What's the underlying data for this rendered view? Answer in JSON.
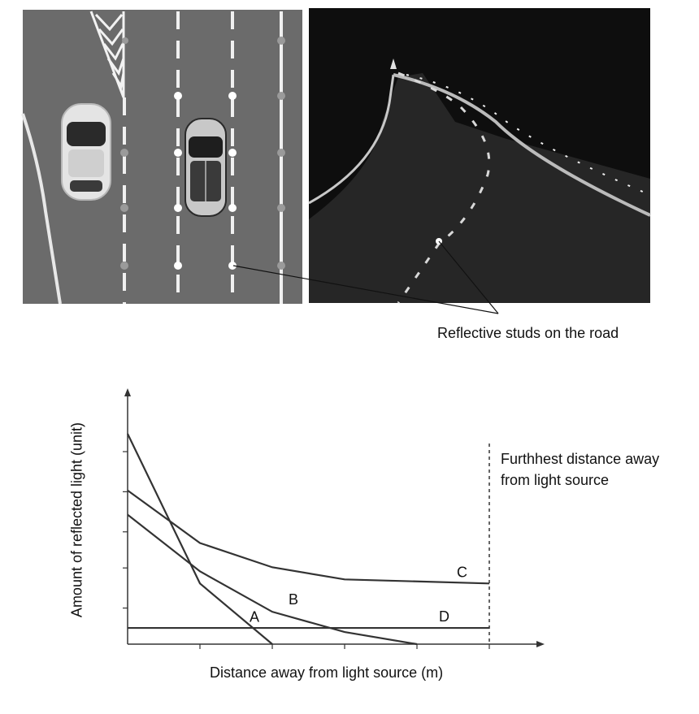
{
  "caption": "Reflective studs on the road",
  "chart_data": {
    "type": "line",
    "xlabel": "Distance away from light source (m)",
    "ylabel": "Amount of reflected light (unit)",
    "xlim": [
      0,
      5
    ],
    "ylim": [
      0,
      6.2
    ],
    "grid": false,
    "series": [
      {
        "name": "A",
        "points": [
          [
            0,
            5.2
          ],
          [
            1,
            1.5
          ],
          [
            2,
            0
          ]
        ]
      },
      {
        "name": "B",
        "points": [
          [
            0,
            3.2
          ],
          [
            1,
            1.8
          ],
          [
            2,
            0.8
          ],
          [
            3,
            0.3
          ],
          [
            4,
            0
          ]
        ]
      },
      {
        "name": "C",
        "points": [
          [
            0,
            3.8
          ],
          [
            1,
            2.5
          ],
          [
            2,
            1.9
          ],
          [
            3,
            1.6
          ],
          [
            5,
            1.5
          ]
        ]
      },
      {
        "name": "D",
        "points": [
          [
            0,
            0.4
          ],
          [
            5,
            0.4
          ]
        ]
      }
    ],
    "annotation": "Furthhest distance away from light source"
  },
  "colors": {
    "line": "#333333",
    "road_day": "#6b6b6b",
    "road_night": "#0e0e0e"
  }
}
